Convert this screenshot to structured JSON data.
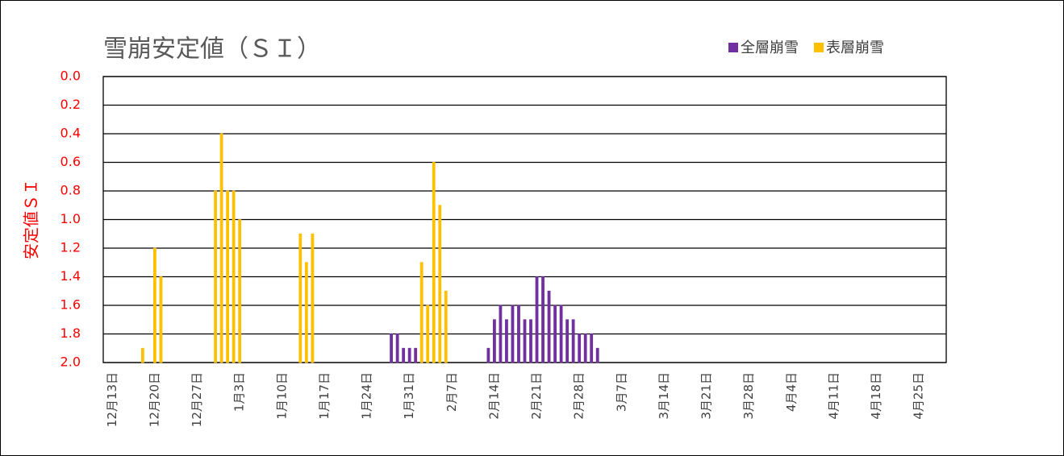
{
  "chart_data": {
    "type": "bar",
    "title": "雪崩安定値（ＳＩ）",
    "y_label": "安定値ＳＩ",
    "categories": [
      null,
      "12月13日",
      null,
      null,
      null,
      null,
      null,
      null,
      "12月20日",
      null,
      null,
      null,
      null,
      null,
      null,
      "12月27日",
      null,
      null,
      null,
      null,
      null,
      null,
      "1月3日",
      null,
      null,
      null,
      null,
      null,
      null,
      "1月10日",
      null,
      null,
      null,
      null,
      null,
      null,
      "1月17日",
      null,
      null,
      null,
      null,
      null,
      null,
      "1月24日",
      null,
      null,
      null,
      null,
      null,
      null,
      "1月31日",
      null,
      null,
      null,
      null,
      null,
      null,
      "2月7日",
      null,
      null,
      null,
      null,
      null,
      null,
      "2月14日",
      null,
      null,
      null,
      null,
      null,
      null,
      "2月21日",
      null,
      null,
      null,
      null,
      null,
      null,
      "2月28日",
      null,
      null,
      null,
      null,
      null,
      null,
      "3月7日",
      null,
      null,
      null,
      null,
      null,
      null,
      "3月14日",
      null,
      null,
      null,
      null,
      null,
      null,
      "3月21日",
      null,
      null,
      null,
      null,
      null,
      null,
      "3月28日",
      null,
      null,
      null,
      null,
      null,
      null,
      "4月4日",
      null,
      null,
      null,
      null,
      null,
      null,
      "4月11日",
      null,
      null,
      null,
      null,
      null,
      null,
      "4月18日",
      null,
      null,
      null,
      null,
      null,
      null,
      "4月25日",
      null,
      null,
      null,
      null
    ],
    "series": [
      {
        "name": "全層崩雪",
        "color": "#7030a0",
        "values": [
          null,
          null,
          null,
          null,
          null,
          null,
          null,
          null,
          null,
          null,
          null,
          null,
          null,
          null,
          null,
          null,
          null,
          null,
          null,
          null,
          null,
          null,
          null,
          null,
          null,
          null,
          null,
          null,
          null,
          null,
          null,
          null,
          null,
          null,
          null,
          null,
          null,
          null,
          null,
          null,
          null,
          null,
          null,
          null,
          null,
          null,
          null,
          1.8,
          1.8,
          1.9,
          1.9,
          1.9,
          null,
          null,
          null,
          null,
          null,
          null,
          null,
          null,
          null,
          null,
          null,
          1.9,
          1.7,
          1.6,
          1.7,
          1.6,
          1.6,
          1.7,
          1.7,
          1.4,
          1.4,
          1.5,
          1.6,
          1.6,
          1.7,
          1.7,
          1.8,
          1.8,
          1.8,
          1.9,
          null,
          2.0,
          2.0,
          2.0,
          2.0,
          null,
          null,
          null,
          null,
          null,
          null,
          null,
          null,
          null,
          null,
          null,
          null,
          null,
          null,
          null,
          null,
          null,
          null,
          null,
          null,
          null,
          null,
          null,
          null,
          null,
          null,
          null,
          null,
          null,
          null,
          null,
          null,
          null,
          null,
          null,
          null,
          null,
          null,
          null,
          null,
          null,
          null,
          null,
          null,
          null,
          null,
          null,
          null,
          null,
          null,
          null,
          null
        ]
      },
      {
        "name": "表層崩雪",
        "color": "#ffc000",
        "values": [
          null,
          null,
          null,
          null,
          null,
          null,
          1.9,
          2.0,
          1.2,
          1.4,
          2.0,
          2.0,
          null,
          null,
          null,
          null,
          null,
          null,
          0.8,
          0.4,
          0.8,
          0.8,
          1.0,
          null,
          2.0,
          null,
          null,
          null,
          null,
          null,
          null,
          null,
          1.1,
          1.3,
          1.1,
          2.0,
          2.0,
          2.0,
          null,
          null,
          null,
          null,
          2.0,
          null,
          null,
          null,
          null,
          null,
          null,
          null,
          null,
          null,
          1.3,
          1.6,
          0.6,
          0.9,
          1.5,
          2.0,
          null,
          null,
          null,
          null,
          null,
          null,
          null,
          null,
          null,
          null,
          null,
          null,
          null,
          null,
          null,
          null,
          null,
          null,
          null,
          null,
          null,
          null,
          null,
          null,
          null,
          null,
          null,
          null,
          null,
          null,
          null,
          null,
          null,
          null,
          null,
          null,
          null,
          null,
          null,
          null,
          null,
          null,
          null,
          null,
          null,
          null,
          null,
          null,
          null,
          null,
          null,
          null,
          null,
          null,
          null,
          null,
          null,
          null,
          null,
          null,
          null,
          null,
          null,
          null,
          null,
          null,
          null,
          null,
          null,
          null,
          null,
          null,
          null,
          null,
          null,
          null,
          null,
          null,
          null,
          null,
          null
        ]
      }
    ],
    "ylim": [
      2,
      0
    ],
    "yticks": [
      {
        "value": 0,
        "label": "0.0"
      },
      {
        "value": 0.2,
        "label": "0.2"
      },
      {
        "value": 0.4,
        "label": "0.4"
      },
      {
        "value": 0.6,
        "label": "0.6"
      },
      {
        "value": 0.8,
        "label": "0.8"
      },
      {
        "value": 1,
        "label": "1.0"
      },
      {
        "value": 1.2,
        "label": "1.2"
      },
      {
        "value": 1.4,
        "label": "1.4"
      },
      {
        "value": 1.6,
        "label": "1.6"
      },
      {
        "value": 1.8,
        "label": "1.8"
      },
      {
        "value": 2,
        "label": "2.0"
      }
    ],
    "grid": true
  }
}
